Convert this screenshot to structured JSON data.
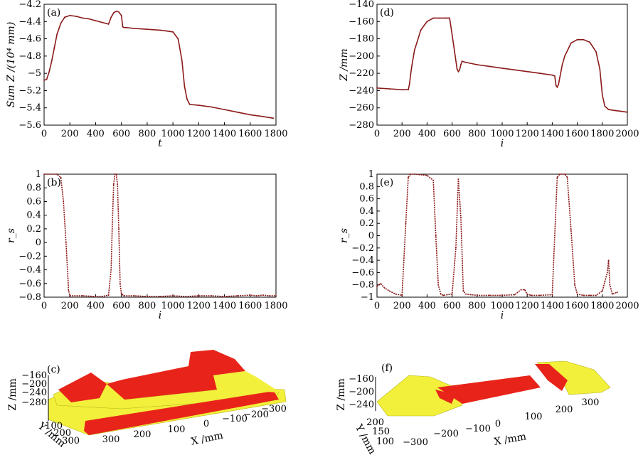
{
  "chart_data": [
    {
      "id": "a",
      "type": "line",
      "panel_label": "(a)",
      "xlabel": "t",
      "ylabel": "Sum Z /(10⁴ mm)",
      "xlim": [
        0,
        1800
      ],
      "ylim": [
        -5.6,
        -4.2
      ],
      "xticks": [
        0,
        200,
        400,
        600,
        800,
        1000,
        1200,
        1400,
        1600,
        1800
      ],
      "yticks": [
        -5.6,
        -5.4,
        -5.2,
        -5.0,
        -4.8,
        -4.6,
        -4.4,
        -4.2
      ],
      "x": [
        0,
        20,
        40,
        60,
        80,
        100,
        130,
        160,
        200,
        250,
        300,
        350,
        400,
        450,
        500,
        520,
        540,
        560,
        580,
        600,
        610,
        620,
        640,
        700,
        800,
        900,
        950,
        1000,
        1040,
        1070,
        1090,
        1110,
        1130,
        1200,
        1300,
        1400,
        1500,
        1600,
        1700,
        1780
      ],
      "y": [
        -5.08,
        -5.07,
        -4.98,
        -4.85,
        -4.7,
        -4.55,
        -4.42,
        -4.35,
        -4.33,
        -4.34,
        -4.36,
        -4.37,
        -4.39,
        -4.41,
        -4.43,
        -4.35,
        -4.3,
        -4.28,
        -4.29,
        -4.33,
        -4.46,
        -4.47,
        -4.47,
        -4.48,
        -4.49,
        -4.5,
        -4.51,
        -4.52,
        -4.6,
        -4.85,
        -5.15,
        -5.3,
        -5.36,
        -5.37,
        -5.39,
        -5.42,
        -5.45,
        -5.48,
        -5.5,
        -5.52
      ],
      "color": "#8b1a1a"
    },
    {
      "id": "d",
      "type": "line",
      "panel_label": "(d)",
      "xlabel": "i",
      "ylabel": "Z /mm",
      "xlim": [
        0,
        2000
      ],
      "ylim": [
        -280,
        -140
      ],
      "xticks": [
        0,
        200,
        400,
        600,
        800,
        1000,
        1200,
        1400,
        1600,
        1800,
        2000
      ],
      "yticks": [
        -280,
        -260,
        -240,
        -220,
        -200,
        -180,
        -160,
        -140
      ],
      "x": [
        0,
        100,
        200,
        250,
        260,
        270,
        280,
        300,
        350,
        400,
        450,
        500,
        550,
        580,
        600,
        620,
        640,
        650,
        660,
        670,
        680,
        700,
        800,
        900,
        1000,
        1100,
        1200,
        1300,
        1400,
        1420,
        1430,
        1440,
        1450,
        1460,
        1480,
        1500,
        1550,
        1600,
        1650,
        1700,
        1750,
        1780,
        1800,
        1820,
        1850,
        1900,
        1950,
        2000
      ],
      "y": [
        -237,
        -238,
        -239,
        -239,
        -232,
        -220,
        -210,
        -193,
        -170,
        -160,
        -156,
        -156,
        -156,
        -156,
        -175,
        -195,
        -215,
        -218,
        -216,
        -210,
        -206,
        -207,
        -210,
        -212,
        -214,
        -216,
        -218,
        -220,
        -222,
        -223,
        -234,
        -236,
        -233,
        -225,
        -210,
        -200,
        -185,
        -181,
        -181,
        -184,
        -195,
        -215,
        -245,
        -258,
        -262,
        -263,
        -264,
        -265
      ],
      "color": "#8b1a1a"
    },
    {
      "id": "b",
      "type": "line",
      "panel_label": "(b)",
      "xlabel": "i",
      "ylabel": "r_s",
      "xlim": [
        0,
        1800
      ],
      "ylim": [
        -0.8,
        1.0
      ],
      "xticks": [
        0,
        200,
        400,
        600,
        800,
        1000,
        1200,
        1400,
        1600,
        1800
      ],
      "yticks": [
        -0.8,
        -0.6,
        -0.4,
        -0.2,
        0,
        0.2,
        0.4,
        0.6,
        0.8,
        1.0
      ],
      "x": [
        0,
        100,
        130,
        150,
        170,
        190,
        200,
        300,
        400,
        450,
        500,
        520,
        530,
        540,
        550,
        560,
        570,
        580,
        590,
        600,
        620,
        700,
        800,
        900,
        1000,
        1100,
        1200,
        1300,
        1400,
        1500,
        1600,
        1650,
        1700,
        1750,
        1800
      ],
      "y": [
        1.0,
        1.0,
        0.95,
        0.6,
        0.0,
        -0.7,
        -0.78,
        -0.78,
        -0.79,
        -0.79,
        -0.77,
        -0.4,
        0.3,
        0.85,
        1.0,
        1.0,
        0.85,
        0.2,
        -0.6,
        -0.75,
        -0.78,
        -0.78,
        -0.79,
        -0.79,
        -0.78,
        -0.79,
        -0.78,
        -0.78,
        -0.79,
        -0.78,
        -0.77,
        -0.78,
        -0.77,
        -0.78,
        -0.78
      ],
      "color": "#8b1a1a"
    },
    {
      "id": "e",
      "type": "line",
      "panel_label": "(e)",
      "xlabel": "i",
      "ylabel": "r_s",
      "xlim": [
        0,
        2000
      ],
      "ylim": [
        -1.0,
        1.0
      ],
      "xticks": [
        0,
        200,
        400,
        600,
        800,
        1000,
        1200,
        1400,
        1600,
        1800,
        2000
      ],
      "yticks": [
        -1.0,
        -0.8,
        -0.6,
        -0.4,
        -0.2,
        0,
        0.2,
        0.4,
        0.6,
        0.8,
        1.0
      ],
      "x": [
        0,
        30,
        60,
        100,
        150,
        200,
        230,
        250,
        270,
        300,
        400,
        450,
        470,
        490,
        510,
        530,
        560,
        600,
        630,
        650,
        670,
        690,
        710,
        750,
        800,
        900,
        1000,
        1100,
        1150,
        1180,
        1200,
        1230,
        1300,
        1400,
        1420,
        1440,
        1460,
        1500,
        1520,
        1550,
        1580,
        1600,
        1650,
        1700,
        1750,
        1800,
        1820,
        1840,
        1850,
        1860,
        1880,
        1920
      ],
      "y": [
        -0.82,
        -0.78,
        -0.85,
        -0.9,
        -0.95,
        -0.97,
        0.2,
        0.95,
        1.0,
        1.0,
        0.98,
        0.9,
        0.0,
        -0.8,
        -0.95,
        -0.97,
        -0.96,
        -0.95,
        -0.2,
        0.92,
        0.3,
        -0.9,
        -0.95,
        -0.96,
        -0.97,
        -0.97,
        -0.97,
        -0.96,
        -0.88,
        -0.88,
        -0.95,
        -0.97,
        -0.97,
        -0.96,
        0.0,
        0.95,
        1.0,
        1.0,
        0.95,
        0.1,
        -0.8,
        -0.95,
        -0.97,
        -0.97,
        -0.97,
        -0.9,
        -0.75,
        -0.6,
        -0.4,
        -0.8,
        -0.95,
        -0.92
      ],
      "color": "#8b1a1a"
    },
    {
      "id": "c",
      "type": "surface",
      "panel_label": "(c)",
      "xlabel": "X /mm",
      "ylabel": "Y /mm",
      "zlabel": "Z /mm",
      "xticks": [
        300,
        200,
        100,
        0,
        -100,
        -200,
        -300
      ],
      "yticks": [
        100,
        200,
        300
      ],
      "zticks": [
        -160,
        -200,
        -240,
        -280
      ],
      "colors": {
        "surface": "#f2f03a",
        "highlight": "#e8241a"
      }
    },
    {
      "id": "f",
      "type": "surface",
      "panel_label": "(f)",
      "xlabel": "X /mm",
      "ylabel": "Y /mm",
      "zlabel": "Z /mm",
      "xticks": [
        -300,
        -200,
        -100,
        0,
        100,
        200,
        300
      ],
      "yticks": [
        100,
        150,
        200
      ],
      "zticks": [
        -160,
        -200,
        -240
      ],
      "colors": {
        "surface": "#f2f03a",
        "highlight": "#e8241a"
      }
    }
  ]
}
